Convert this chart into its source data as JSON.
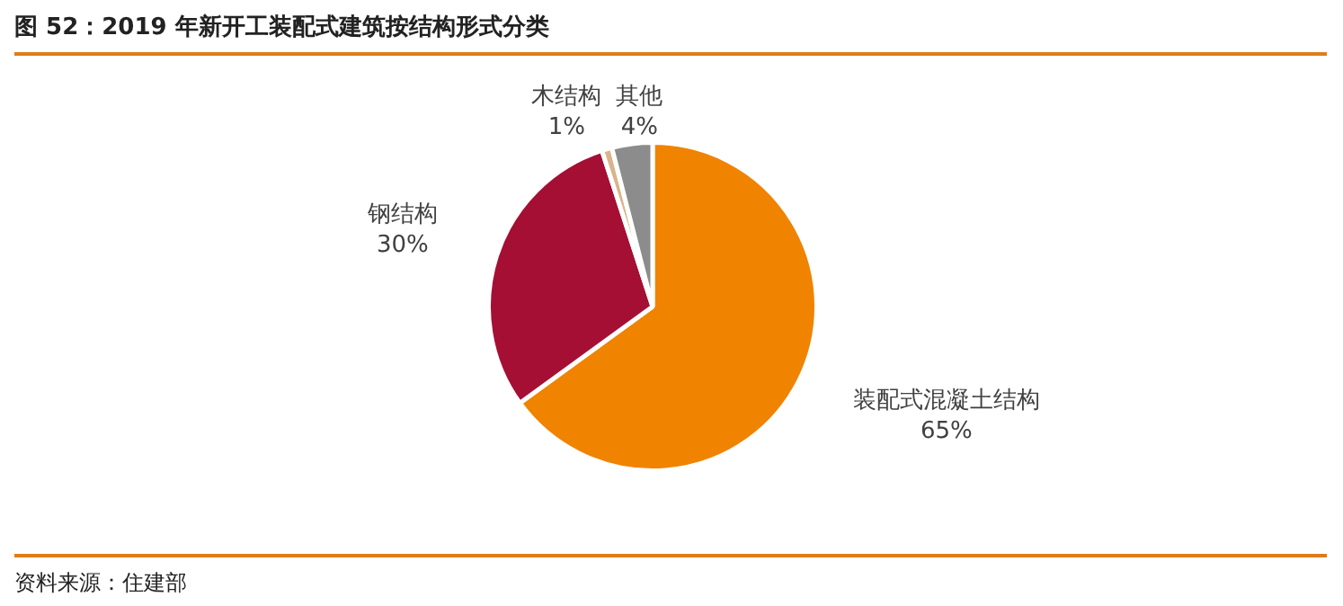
{
  "chart_data": {
    "type": "pie",
    "title": "图 52：2019 年新开工装配式建筑按结构形式分类",
    "categories": [
      "装配式混凝土结构",
      "钢结构",
      "木结构",
      "其他"
    ],
    "values": [
      65,
      30,
      1,
      4
    ],
    "value_labels": [
      "65%",
      "30%",
      "1%",
      "4%"
    ],
    "colors": [
      "#f08300",
      "#a50f34",
      "#d9b48c",
      "#8c8c8c"
    ],
    "legend": false,
    "annotations": [
      "资料来源：住建部"
    ]
  }
}
